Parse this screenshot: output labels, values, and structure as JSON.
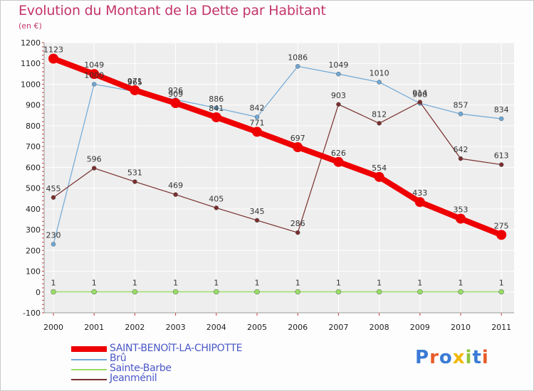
{
  "chart_data": {
    "type": "line",
    "title": "Evolution du Montant de la Dette par Habitant",
    "subtitle": "(en €)",
    "x": [
      "2000",
      "2001",
      "2002",
      "2003",
      "2004",
      "2005",
      "2006",
      "2007",
      "2008",
      "2009",
      "2010",
      "2011"
    ],
    "ylim": [
      -100,
      1200
    ],
    "yticks": [
      -100,
      0,
      100,
      200,
      300,
      400,
      500,
      600,
      700,
      800,
      900,
      1000,
      1100,
      1200
    ],
    "grid": true,
    "legend_position": "bottom-left",
    "series": [
      {
        "name": "SAINT-BENOîT-LA-CHIPOTTE",
        "color": "#ee0000",
        "values": [
          1123,
          1049,
          971,
          909,
          841,
          771,
          697,
          626,
          554,
          433,
          353,
          275
        ]
      },
      {
        "name": "Brû",
        "color": "#6fa8d6",
        "values": [
          230,
          1000,
          965,
          926,
          886,
          842,
          1086,
          1049,
          1010,
          908,
          857,
          834
        ]
      },
      {
        "name": "Sainte-Barbe",
        "color": "#99dd66",
        "values": [
          1,
          1,
          1,
          1,
          1,
          1,
          1,
          1,
          1,
          1,
          1,
          1
        ]
      },
      {
        "name": "Jeanménil",
        "color": "#7a2e2e",
        "values": [
          455,
          596,
          531,
          469,
          405,
          345,
          286,
          903,
          812,
          914,
          642,
          613
        ]
      }
    ]
  },
  "logo": {
    "text": "Proxiti"
  }
}
